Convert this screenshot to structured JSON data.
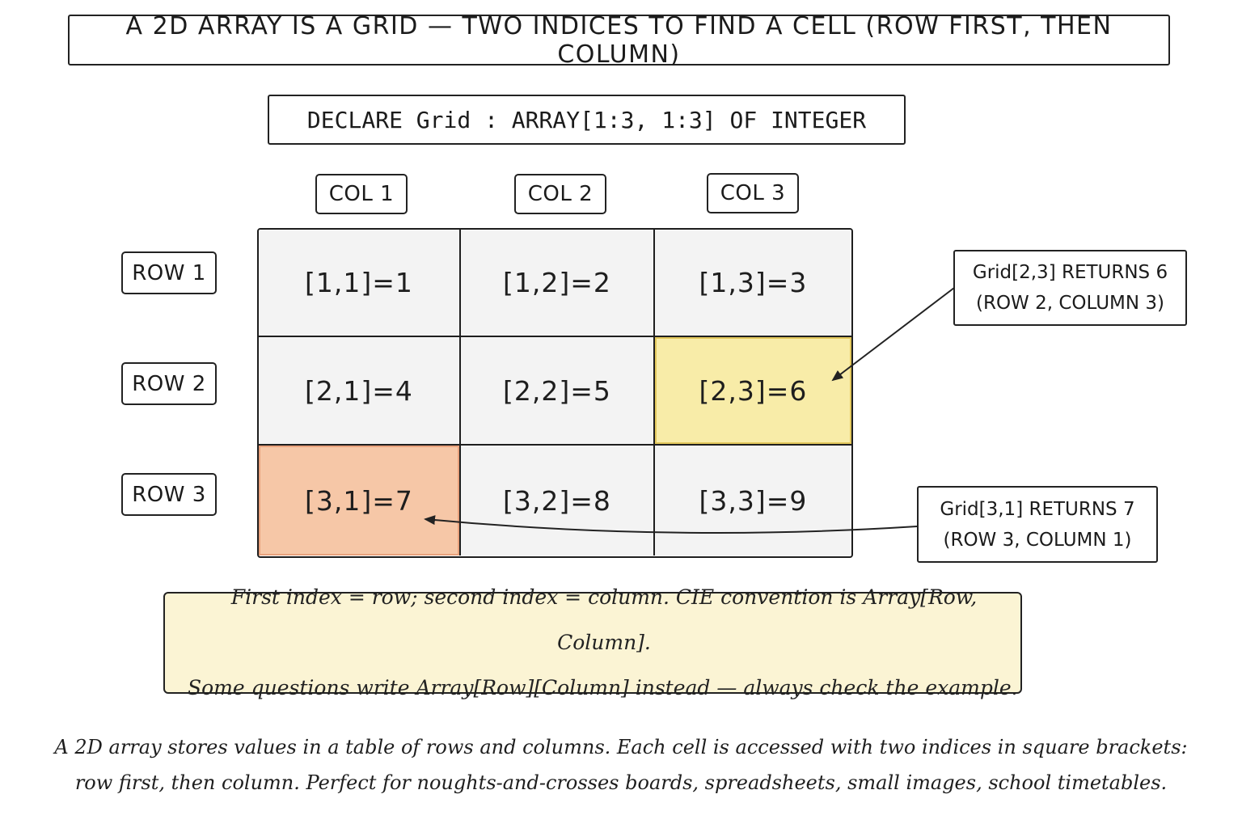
{
  "title": "A 2D ARRAY IS A GRID — TWO INDICES TO FIND A CELL (ROW FIRST, THEN COLUMN)",
  "declaration": "DECLARE Grid : ARRAY[1:3, 1:3] OF INTEGER",
  "columns": [
    "COL 1",
    "COL 2",
    "COL 3"
  ],
  "rows": [
    "ROW 1",
    "ROW 2",
    "ROW 3"
  ],
  "cells": [
    [
      "[1,1]=1",
      "[1,2]=2",
      "[1,3]=3"
    ],
    [
      "[2,1]=4",
      "[2,2]=5",
      "[2,3]=6"
    ],
    [
      "[3,1]=7",
      "[3,2]=8",
      "[3,3]=9"
    ]
  ],
  "highlights": {
    "yellow": "#f8eca8",
    "orange": "#f6c7a7"
  },
  "callouts": [
    {
      "line1": "Grid[2,3] RETURNS 6",
      "line2": "(ROW 2, COLUMN 3)"
    },
    {
      "line1": "Grid[3,1] RETURNS 7",
      "line2": "(ROW 3, COLUMN 1)"
    }
  ],
  "note": {
    "line1": "First index = row; second index = column. CIE convention is Array[Row, Column].",
    "line2": "Some questions write Array[Row][Column] instead — always check the example."
  },
  "caption": {
    "line1": "A 2D array stores values in a table of rows and columns. Each cell is accessed with two indices in square brackets:",
    "line2": "row first, then column. Perfect for noughts-and-crosses boards, spreadsheets, small images, school timetables."
  }
}
